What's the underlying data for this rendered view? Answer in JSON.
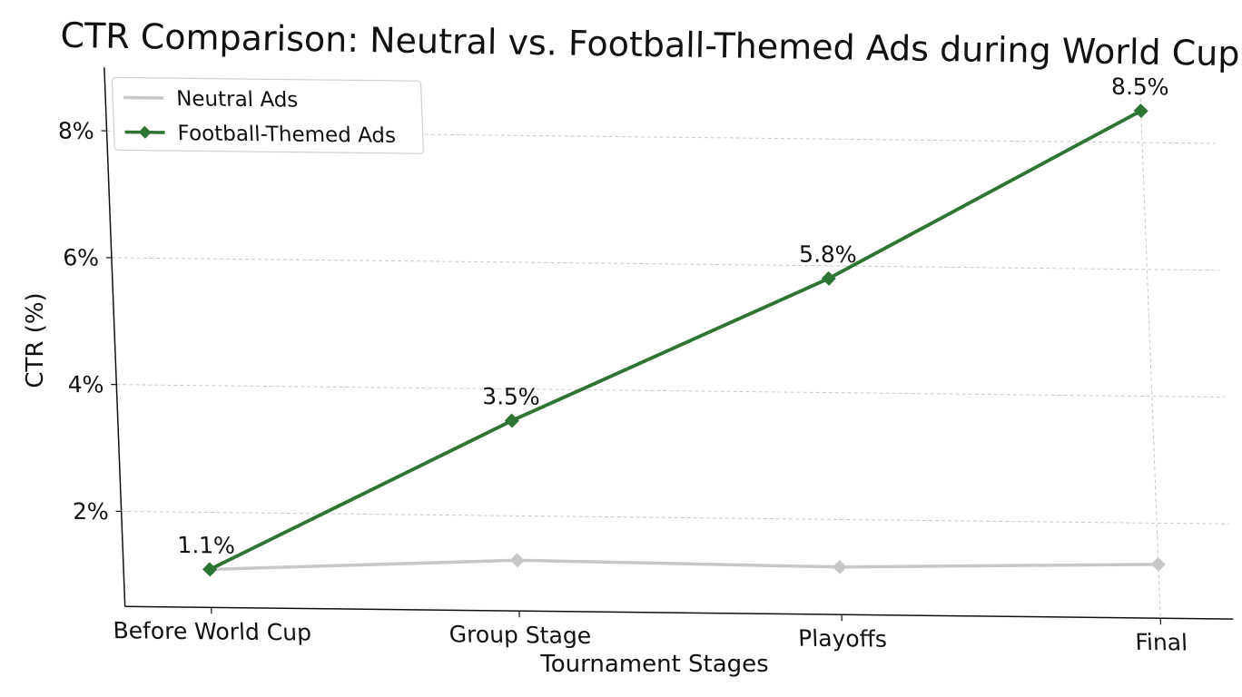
{
  "chart_data": {
    "type": "line",
    "title": "CTR Comparison: Neutral vs. Football-Themed Ads during World Cup",
    "xlabel": "Tournament Stages",
    "ylabel": "CTR (%)",
    "categories": [
      "Before World Cup",
      "Group Stage",
      "Playoffs",
      "Final"
    ],
    "ylim": [
      0.5,
      9.0
    ],
    "yticks": [
      2,
      4,
      6,
      8
    ],
    "ytick_labels": [
      "2%",
      "4%",
      "6%",
      "8%"
    ],
    "grid": true,
    "legend_position": "top-left",
    "series": [
      {
        "name": "Neutral Ads",
        "values": [
          1.1,
          1.3,
          1.25,
          1.35
        ],
        "color": "#c8c8c8",
        "marker": "diamond"
      },
      {
        "name": "Football-Themed Ads",
        "values": [
          1.1,
          3.5,
          5.8,
          8.5
        ],
        "color": "#2e7533",
        "marker": "diamond",
        "data_labels": [
          "1.1%",
          "3.5%",
          "5.8%",
          "8.5%"
        ]
      }
    ]
  }
}
